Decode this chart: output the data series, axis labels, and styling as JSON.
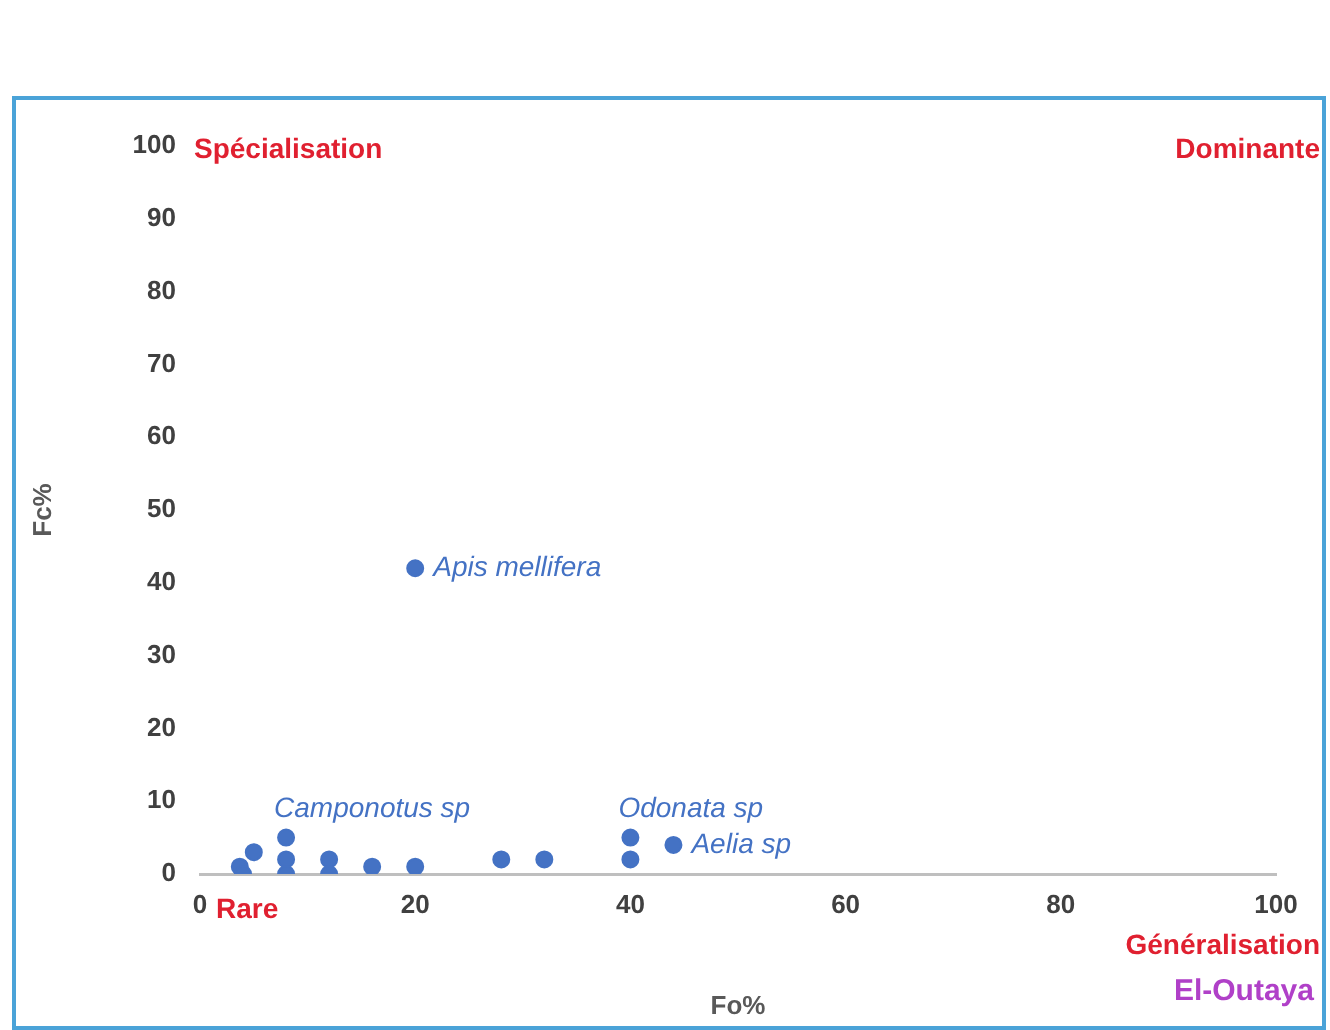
{
  "chart_data": {
    "type": "scatter",
    "xlabel": "Fo%",
    "ylabel": "Fc%",
    "xlim": [
      0,
      100
    ],
    "xticks": [
      0,
      20,
      40,
      60,
      80,
      100
    ],
    "ylim": [
      0,
      100
    ],
    "yticks": [
      0,
      10,
      20,
      30,
      40,
      50,
      60,
      70,
      80,
      90,
      100
    ],
    "grid": false,
    "legend": false,
    "marker": "circle",
    "series": [
      {
        "color": "#4472c4",
        "x": [
          3.7,
          4,
          5,
          8,
          8,
          8,
          12,
          12,
          16,
          20,
          20,
          28,
          32,
          40,
          40,
          44
        ],
        "values": [
          1,
          0,
          3,
          5,
          2,
          0,
          2,
          0,
          1,
          1,
          42,
          2,
          2,
          5,
          2,
          4
        ]
      }
    ],
    "annotations": [
      {
        "text": "Apis mellifera",
        "x": 20,
        "y": 42
      },
      {
        "text": "Camponotus sp",
        "x": 8,
        "y": 5
      },
      {
        "text": "Odonata sp",
        "x": 40,
        "y": 5
      },
      {
        "text": "Aelia sp",
        "x": 44,
        "y": 4
      },
      "Spécialisation",
      "Dominante",
      "Rare",
      "Généralisation",
      "El-Outaya"
    ]
  }
}
